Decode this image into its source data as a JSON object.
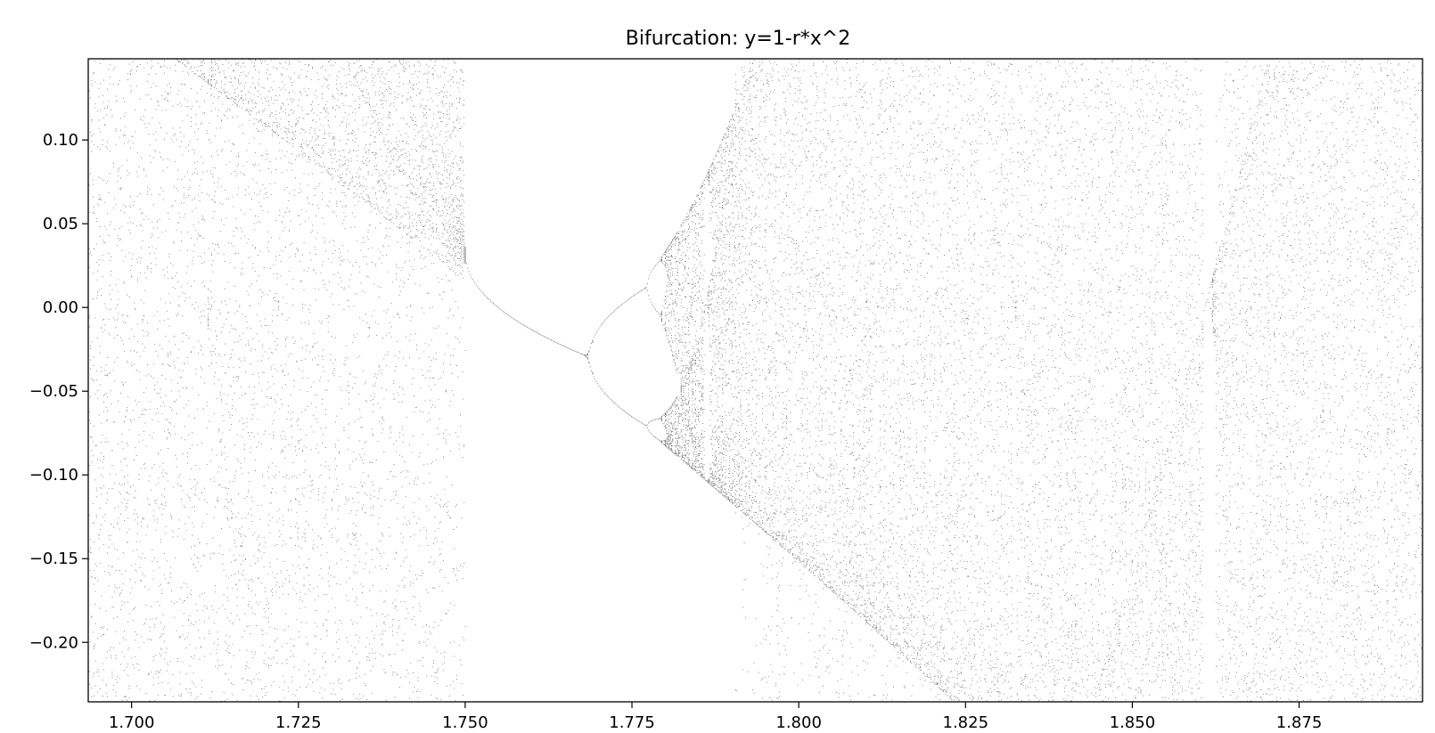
{
  "chart_data": {
    "type": "scatter",
    "title": "Bifurcation: y=1-r*x^2",
    "xlabel": "",
    "ylabel": "",
    "xlim": [
      1.6935,
      1.8935
    ],
    "ylim": [
      -0.2355,
      0.1485
    ],
    "xticks": [
      1.7,
      1.725,
      1.75,
      1.775,
      1.8,
      1.825,
      1.85,
      1.875
    ],
    "xtick_labels": [
      "1.700",
      "1.725",
      "1.750",
      "1.775",
      "1.800",
      "1.825",
      "1.850",
      "1.875"
    ],
    "yticks": [
      -0.2,
      -0.15,
      -0.1,
      -0.05,
      0.0,
      0.05,
      0.1
    ],
    "ytick_labels": [
      "−0.20",
      "−0.15",
      "−0.10",
      "−0.05",
      "0.00",
      "0.05",
      "0.10"
    ],
    "grid": false,
    "marker_color": "#000000",
    "map_parameter_r_range": [
      1.6935,
      1.8935
    ],
    "map": "y=1-r*x^2"
  }
}
